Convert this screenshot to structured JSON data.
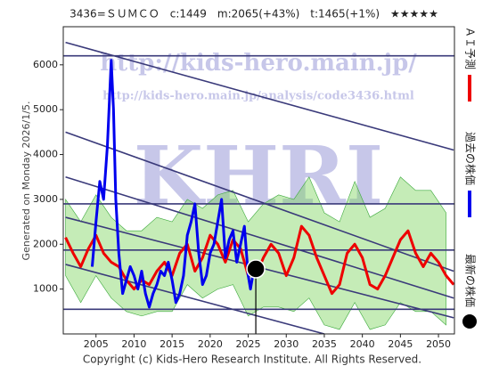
{
  "chart_data": {
    "type": "line",
    "title": "3436=ＳＵＭＣＯ　c:1449　m:2065(+43%)　t:1465(+1%)　★★★★★",
    "generated": "Generated on Monday 2026/1/5.",
    "copyright": "Copyright (c) Kids-Hero Research Institute. All Rights Reserved.",
    "watermarks": [
      "http://kids-hero.main.jp/",
      "http://kids-hero.main.jp/analysis/code3436.html",
      "KHRI"
    ],
    "xlim": [
      2000.7,
      2052.1
    ],
    "ylim": [
      0,
      6850
    ],
    "xticks": [
      2005,
      2010,
      2015,
      2020,
      2025,
      2030,
      2035,
      2040,
      2045,
      2050
    ],
    "yticks": [
      1000,
      2000,
      3000,
      4000,
      5000,
      6000
    ],
    "series": [
      {
        "name": "ＡＩ予測",
        "color": "#ee0000",
        "x": [
          2001,
          2002,
          2003,
          2004,
          2005,
          2006,
          2007,
          2008,
          2009,
          2010,
          2011,
          2012,
          2013,
          2014,
          2015,
          2016,
          2017,
          2018,
          2019,
          2020,
          2021,
          2022,
          2023,
          2024,
          2025,
          2026,
          2027,
          2028,
          2029,
          2030,
          2031,
          2032,
          2033,
          2034,
          2035,
          2036,
          2037,
          2038,
          2039,
          2040,
          2041,
          2042,
          2043,
          2044,
          2045,
          2046,
          2047,
          2048,
          2049,
          2050,
          2051,
          2052
        ],
        "values": [
          2150,
          1800,
          1500,
          1900,
          2200,
          1800,
          1600,
          1500,
          1200,
          1000,
          1200,
          1100,
          1400,
          1600,
          1300,
          1800,
          2000,
          1400,
          1700,
          2200,
          2000,
          1600,
          2100,
          1900,
          1300,
          1300,
          1700,
          2000,
          1800,
          1300,
          1700,
          2400,
          2200,
          1700,
          1300,
          900,
          1100,
          1800,
          2000,
          1700,
          1100,
          1000,
          1300,
          1700,
          2100,
          2300,
          1800,
          1500,
          1800,
          1600,
          1300,
          1100
        ]
      },
      {
        "name": "過去の株価",
        "color": "#0000ee",
        "x": [
          2004.5,
          2005,
          2005.5,
          2006,
          2006.5,
          2007,
          2007.3,
          2007.6,
          2008,
          2008.5,
          2009,
          2009.5,
          2010,
          2010.5,
          2011,
          2011.5,
          2012,
          2012.5,
          2013,
          2013.5,
          2014,
          2014.5,
          2015,
          2015.5,
          2016,
          2016.5,
          2017,
          2017.5,
          2018,
          2018.5,
          2019,
          2019.5,
          2020,
          2020.5,
          2021,
          2021.5,
          2022,
          2022.5,
          2023,
          2023.5,
          2024,
          2024.5,
          2025,
          2025.3,
          2025.6
        ],
        "values": [
          1500,
          2500,
          3400,
          3000,
          4200,
          6100,
          5000,
          3000,
          1800,
          900,
          1200,
          1500,
          1300,
          1000,
          1400,
          900,
          600,
          900,
          1100,
          1400,
          1300,
          1600,
          1200,
          700,
          900,
          1300,
          2200,
          2500,
          2900,
          1800,
          1100,
          1300,
          1800,
          2000,
          2500,
          3000,
          1700,
          2100,
          2300,
          1600,
          2000,
          2400,
          1300,
          1000,
          1300
        ]
      }
    ],
    "latest": {
      "name": "最新の株価",
      "color": "#000000",
      "x": 2026,
      "value": 1449
    },
    "band": {
      "color": "#7fd45f",
      "x": [
        2001,
        2003,
        2005,
        2007,
        2009,
        2011,
        2013,
        2015,
        2017,
        2019,
        2021,
        2023,
        2025,
        2027,
        2029,
        2031,
        2033,
        2035,
        2037,
        2039,
        2041,
        2043,
        2045,
        2047,
        2049,
        2051
      ],
      "upper": [
        3000,
        2500,
        3100,
        2600,
        2300,
        2300,
        2600,
        2500,
        3000,
        2800,
        3100,
        3200,
        2500,
        2900,
        3100,
        3000,
        3500,
        2700,
        2500,
        3400,
        2600,
        2800,
        3500,
        3200,
        3200,
        2700
      ],
      "lower": [
        1300,
        700,
        1300,
        800,
        500,
        400,
        500,
        500,
        1100,
        800,
        1000,
        1100,
        400,
        600,
        600,
        500,
        800,
        200,
        100,
        700,
        100,
        200,
        700,
        500,
        500,
        200
      ]
    },
    "hlines": [
      6200,
      2900,
      1870,
      550
    ],
    "channels": [
      {
        "x": [
          2001,
          2052
        ],
        "values": [
          6500,
          4100
        ]
      },
      {
        "x": [
          2001,
          2052
        ],
        "values": [
          4500,
          1400
        ]
      },
      {
        "x": [
          2001,
          2052
        ],
        "values": [
          3500,
          800
        ]
      },
      {
        "x": [
          2001,
          2052
        ],
        "values": [
          2600,
          360
        ]
      },
      {
        "x": [
          2001,
          2035
        ],
        "values": [
          1550,
          0
        ]
      }
    ]
  }
}
